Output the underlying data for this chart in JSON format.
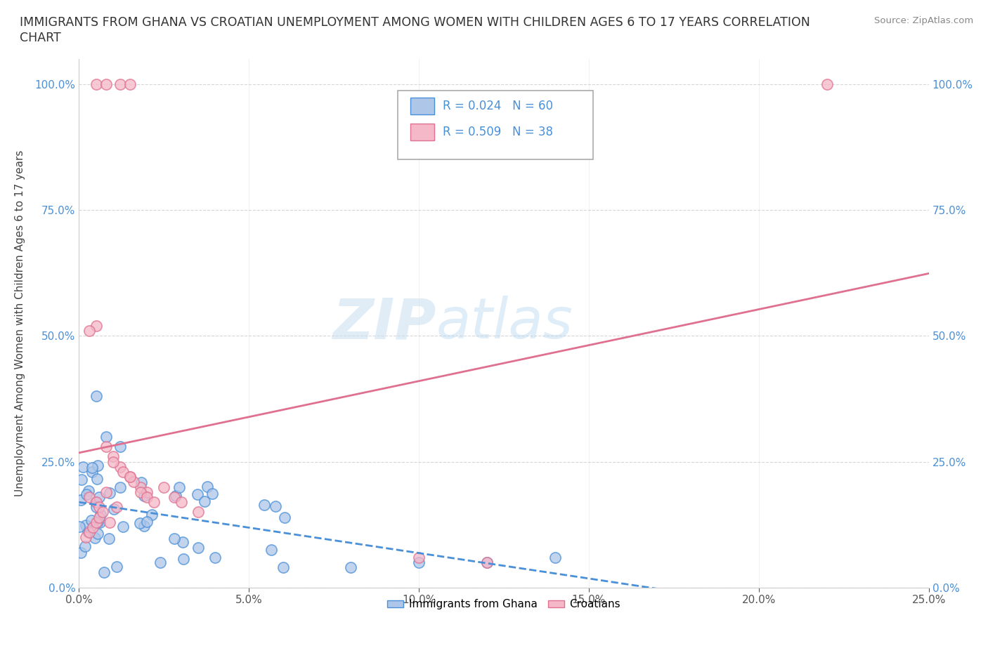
{
  "title": "IMMIGRANTS FROM GHANA VS CROATIAN UNEMPLOYMENT AMONG WOMEN WITH CHILDREN AGES 6 TO 17 YEARS CORRELATION\nCHART",
  "source_text": "Source: ZipAtlas.com",
  "ylabel": "Unemployment Among Women with Children Ages 6 to 17 years",
  "xlim": [
    0.0,
    0.25
  ],
  "ylim": [
    0.0,
    1.05
  ],
  "xtick_labels": [
    "0.0%",
    "5.0%",
    "10.0%",
    "15.0%",
    "20.0%",
    "25.0%"
  ],
  "xtick_vals": [
    0.0,
    0.05,
    0.1,
    0.15,
    0.2,
    0.25
  ],
  "ytick_labels": [
    "0.0%",
    "25.0%",
    "50.0%",
    "75.0%",
    "100.0%"
  ],
  "ytick_vals": [
    0.0,
    0.25,
    0.5,
    0.75,
    1.0
  ],
  "ghana_color": "#aec6e8",
  "croatian_color": "#f4b8c8",
  "ghana_edge_color": "#4a90d9",
  "croatian_edge_color": "#e07090",
  "ghana_R": 0.024,
  "ghana_N": 60,
  "croatian_R": 0.509,
  "croatian_N": 38,
  "legend_label_ghana": "Immigrants from Ghana",
  "legend_label_croatian": "Croatians",
  "watermark_zip": "ZIP",
  "watermark_atlas": "atlas",
  "ghana_line_color": "#4a90d9",
  "croatian_line_color": "#e07090",
  "background_color": "#ffffff",
  "grid_color": "#cccccc",
  "r_n_color": "#4a90d9",
  "title_color": "#333333",
  "source_color": "#888888"
}
